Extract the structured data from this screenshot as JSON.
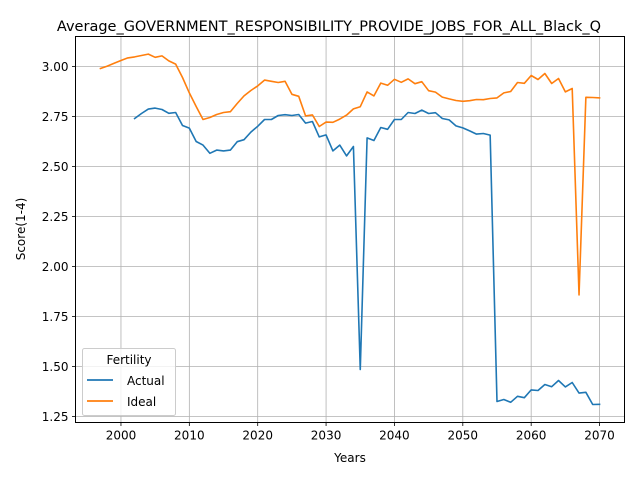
{
  "chart_data": {
    "type": "line",
    "title": "Average_GOVERNMENT_RESPONSIBILITY_PROVIDE_JOBS_FOR_ALL_Black_Q",
    "xlabel": "Years",
    "ylabel": "Score(1-4)",
    "xlim": [
      1993.35,
      2073.65
    ],
    "ylim": [
      1.22,
      3.15
    ],
    "xticks": [
      2000,
      2010,
      2020,
      2030,
      2040,
      2050,
      2060,
      2070
    ],
    "yticks": [
      1.25,
      1.5,
      1.75,
      2.0,
      2.25,
      2.5,
      2.75,
      3.0
    ],
    "ytick_labels": [
      "1.25",
      "1.50",
      "1.75",
      "2.00",
      "2.25",
      "2.50",
      "2.75",
      "3.00"
    ],
    "grid": true,
    "legend": {
      "title": "Fertility",
      "position": "lower-left"
    },
    "series": [
      {
        "name": "Actual",
        "color": "#1f77b4",
        "points": [
          [
            2002,
            2.74
          ],
          [
            2003,
            2.765
          ],
          [
            2004,
            2.787
          ],
          [
            2005,
            2.792
          ],
          [
            2006,
            2.785
          ],
          [
            2007,
            2.766
          ],
          [
            2008,
            2.77
          ],
          [
            2009,
            2.705
          ],
          [
            2010,
            2.692
          ],
          [
            2011,
            2.625
          ],
          [
            2012,
            2.607
          ],
          [
            2013,
            2.566
          ],
          [
            2014,
            2.582
          ],
          [
            2015,
            2.578
          ],
          [
            2016,
            2.582
          ],
          [
            2017,
            2.624
          ],
          [
            2018,
            2.634
          ],
          [
            2019,
            2.672
          ],
          [
            2020,
            2.701
          ],
          [
            2021,
            2.735
          ],
          [
            2022,
            2.735
          ],
          [
            2023,
            2.755
          ],
          [
            2024,
            2.759
          ],
          [
            2025,
            2.755
          ],
          [
            2026,
            2.76
          ],
          [
            2027,
            2.717
          ],
          [
            2028,
            2.725
          ],
          [
            2029,
            2.648
          ],
          [
            2030,
            2.658
          ],
          [
            2031,
            2.578
          ],
          [
            2032,
            2.607
          ],
          [
            2033,
            2.553
          ],
          [
            2034,
            2.6
          ],
          [
            2035,
            1.485
          ],
          [
            2036,
            2.643
          ],
          [
            2037,
            2.63
          ],
          [
            2038,
            2.695
          ],
          [
            2039,
            2.686
          ],
          [
            2040,
            2.735
          ],
          [
            2041,
            2.735
          ],
          [
            2042,
            2.77
          ],
          [
            2043,
            2.765
          ],
          [
            2044,
            2.782
          ],
          [
            2045,
            2.765
          ],
          [
            2046,
            2.769
          ],
          [
            2047,
            2.74
          ],
          [
            2048,
            2.733
          ],
          [
            2049,
            2.703
          ],
          [
            2050,
            2.693
          ],
          [
            2051,
            2.678
          ],
          [
            2052,
            2.662
          ],
          [
            2053,
            2.665
          ],
          [
            2054,
            2.657
          ],
          [
            2055,
            1.325
          ],
          [
            2056,
            1.335
          ],
          [
            2057,
            1.321
          ],
          [
            2058,
            1.351
          ],
          [
            2059,
            1.344
          ],
          [
            2060,
            1.383
          ],
          [
            2061,
            1.38
          ],
          [
            2062,
            1.41
          ],
          [
            2063,
            1.399
          ],
          [
            2064,
            1.43
          ],
          [
            2065,
            1.398
          ],
          [
            2066,
            1.42
          ],
          [
            2067,
            1.367
          ],
          [
            2068,
            1.371
          ],
          [
            2069,
            1.31
          ],
          [
            2070,
            1.311
          ]
        ]
      },
      {
        "name": "Ideal",
        "color": "#ff7f0e",
        "points": [
          [
            1997,
            2.99
          ],
          [
            1998,
            3.002
          ],
          [
            1999,
            3.016
          ],
          [
            2000,
            3.03
          ],
          [
            2001,
            3.043
          ],
          [
            2002,
            3.048
          ],
          [
            2003,
            3.055
          ],
          [
            2004,
            3.062
          ],
          [
            2005,
            3.046
          ],
          [
            2006,
            3.053
          ],
          [
            2007,
            3.028
          ],
          [
            2008,
            3.012
          ],
          [
            2009,
            2.945
          ],
          [
            2010,
            2.868
          ],
          [
            2011,
            2.8
          ],
          [
            2012,
            2.735
          ],
          [
            2013,
            2.745
          ],
          [
            2014,
            2.76
          ],
          [
            2015,
            2.77
          ],
          [
            2016,
            2.774
          ],
          [
            2017,
            2.815
          ],
          [
            2018,
            2.853
          ],
          [
            2019,
            2.88
          ],
          [
            2020,
            2.903
          ],
          [
            2021,
            2.932
          ],
          [
            2022,
            2.926
          ],
          [
            2023,
            2.92
          ],
          [
            2024,
            2.926
          ],
          [
            2025,
            2.861
          ],
          [
            2026,
            2.851
          ],
          [
            2027,
            2.753
          ],
          [
            2028,
            2.758
          ],
          [
            2029,
            2.7
          ],
          [
            2030,
            2.722
          ],
          [
            2031,
            2.721
          ],
          [
            2032,
            2.737
          ],
          [
            2033,
            2.757
          ],
          [
            2034,
            2.788
          ],
          [
            2035,
            2.799
          ],
          [
            2036,
            2.873
          ],
          [
            2037,
            2.853
          ],
          [
            2038,
            2.917
          ],
          [
            2039,
            2.906
          ],
          [
            2040,
            2.936
          ],
          [
            2041,
            2.921
          ],
          [
            2042,
            2.938
          ],
          [
            2043,
            2.914
          ],
          [
            2044,
            2.924
          ],
          [
            2045,
            2.879
          ],
          [
            2046,
            2.872
          ],
          [
            2047,
            2.847
          ],
          [
            2048,
            2.838
          ],
          [
            2049,
            2.83
          ],
          [
            2050,
            2.826
          ],
          [
            2051,
            2.829
          ],
          [
            2052,
            2.835
          ],
          [
            2053,
            2.834
          ],
          [
            2054,
            2.84
          ],
          [
            2055,
            2.843
          ],
          [
            2056,
            2.868
          ],
          [
            2057,
            2.875
          ],
          [
            2058,
            2.92
          ],
          [
            2059,
            2.916
          ],
          [
            2060,
            2.955
          ],
          [
            2061,
            2.935
          ],
          [
            2062,
            2.965
          ],
          [
            2063,
            2.915
          ],
          [
            2064,
            2.94
          ],
          [
            2065,
            2.873
          ],
          [
            2066,
            2.89
          ],
          [
            2067,
            1.858
          ],
          [
            2068,
            2.846
          ],
          [
            2069,
            2.845
          ],
          [
            2070,
            2.843
          ]
        ]
      }
    ]
  }
}
